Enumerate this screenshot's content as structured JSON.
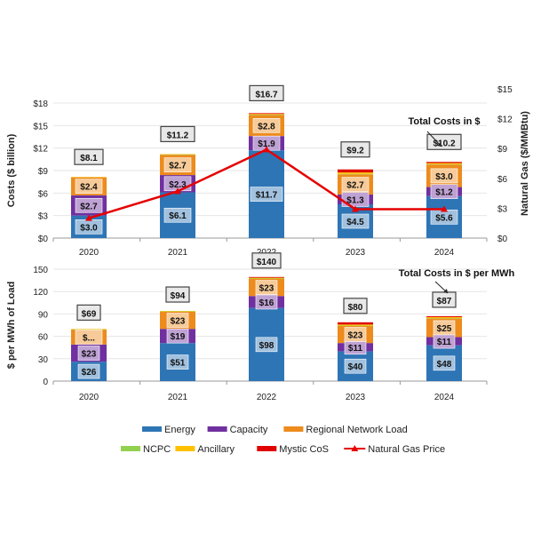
{
  "chart_data": [
    {
      "type": "bar",
      "stacked": true,
      "title": "",
      "categories": [
        "2020",
        "2021",
        "2022",
        "2023",
        "2024"
      ],
      "ylabel": "Costs ($ billion)",
      "ylabel_right": "Natural Gas ($/MMBtu)",
      "ylim": [
        0,
        18
      ],
      "ylim_right": [
        0,
        15
      ],
      "yticks": [
        "$0",
        "$3",
        "$6",
        "$9",
        "$12",
        "$15",
        "$18"
      ],
      "yticks_right": [
        "$0",
        "$3",
        "$6",
        "$9",
        "$12",
        "$15"
      ],
      "grid": true,
      "annotation": "Total Costs in $",
      "series": [
        {
          "name": "Energy",
          "color": "#2e75b6",
          "values": [
            3.0,
            6.1,
            11.7,
            4.5,
            5.6
          ],
          "labels": [
            "$3.0",
            "$6.1",
            "$11.7",
            "$4.5",
            "$5.6"
          ]
        },
        {
          "name": "Capacity",
          "color": "#7030a0",
          "values": [
            2.7,
            2.3,
            1.9,
            1.3,
            1.2
          ],
          "labels": [
            "$2.7",
            "$2.3",
            "$1.9",
            "$1.3",
            "$1.2"
          ]
        },
        {
          "name": "Regional Network Load",
          "color": "#ed8b1d",
          "values": [
            2.4,
            2.7,
            2.8,
            2.7,
            3.0
          ],
          "labels": [
            "$2.4",
            "$2.7",
            "$2.8",
            "$2.7",
            "$3.0"
          ]
        },
        {
          "name": "NCPC",
          "color": "#92d050",
          "values": [
            0.0,
            0.05,
            0.05,
            0.05,
            0.05
          ]
        },
        {
          "name": "Ancillary",
          "color": "#ffc000",
          "values": [
            0.05,
            0.05,
            0.1,
            0.2,
            0.15
          ]
        },
        {
          "name": "Mystic CoS",
          "color": "#e00000",
          "values": [
            0.0,
            0.0,
            0.1,
            0.4,
            0.15
          ]
        }
      ],
      "totals": [
        "$8.1",
        "$11.2",
        "$16.7",
        "$9.2",
        "$10.2"
      ],
      "line_series": {
        "name": "Natural Gas Price",
        "color": "#e60000",
        "axis": "right",
        "values": [
          2.0,
          4.7,
          8.9,
          2.9,
          2.9
        ]
      }
    },
    {
      "type": "bar",
      "stacked": true,
      "title": "",
      "categories": [
        "2020",
        "2021",
        "2022",
        "2023",
        "2024"
      ],
      "ylabel": "$ per MWh of Load",
      "ylim": [
        0,
        150
      ],
      "yticks": [
        "0",
        "30",
        "60",
        "90",
        "120",
        "150"
      ],
      "grid": true,
      "annotation": "Total Costs in $ per MWh",
      "series": [
        {
          "name": "Energy",
          "color": "#2e75b6",
          "values": [
            26,
            51,
            98,
            40,
            48
          ],
          "labels": [
            "$26",
            "$51",
            "$98",
            "$40",
            "$48"
          ]
        },
        {
          "name": "Capacity",
          "color": "#7030a0",
          "values": [
            23,
            19,
            16,
            11,
            11
          ],
          "labels": [
            "$23",
            "$19",
            "$16",
            "$11",
            "$11"
          ]
        },
        {
          "name": "Regional Network Load",
          "color": "#ed8b1d",
          "values": [
            20,
            23,
            23,
            23,
            25
          ],
          "labels": [
            "$...",
            "$23",
            "$23",
            "$23",
            "$25"
          ]
        },
        {
          "name": "NCPC",
          "color": "#92d050",
          "values": [
            0.5,
            0.7,
            0.5,
            0.3,
            0.3
          ]
        },
        {
          "name": "Ancillary",
          "color": "#ffc000",
          "values": [
            0.3,
            0.3,
            1.0,
            1.5,
            1.5
          ]
        },
        {
          "name": "Mystic CoS",
          "color": "#e00000",
          "values": [
            0,
            0,
            1.0,
            3.0,
            1.2
          ]
        }
      ],
      "totals": [
        "$69",
        "$94",
        "$140",
        "$80",
        "$87"
      ]
    }
  ],
  "legend": {
    "row1": [
      {
        "name": "Energy",
        "color": "#2e75b6",
        "kind": "bar"
      },
      {
        "name": "Capacity",
        "color": "#7030a0",
        "kind": "bar"
      },
      {
        "name": "Regional Network Load",
        "color": "#ed8b1d",
        "kind": "bar"
      }
    ],
    "row2": [
      {
        "name": "NCPC",
        "color": "#92d050",
        "kind": "bar"
      },
      {
        "name": "Ancillary",
        "color": "#ffc000",
        "kind": "bar"
      },
      {
        "name": "Mystic CoS",
        "color": "#e00000",
        "kind": "bar"
      },
      {
        "name": "Natural Gas Price",
        "color": "#e60000",
        "kind": "line"
      }
    ]
  }
}
